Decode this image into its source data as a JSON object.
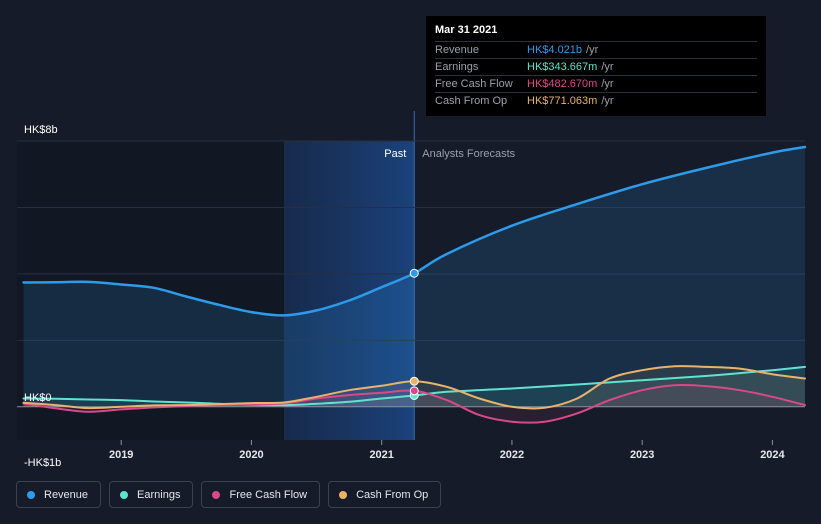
{
  "colors": {
    "revenue": "#2d9bea",
    "earnings": "#5fe3d0",
    "fcf": "#d9498a",
    "cfo": "#eab26a",
    "text": "#e6e8ec",
    "muted": "#9aa0ab"
  },
  "tooltip": {
    "date": "Mar 31 2021",
    "rows": [
      {
        "label": "Revenue",
        "value": "HK$4.021b",
        "unit": "/yr",
        "color": "#2d9bea"
      },
      {
        "label": "Earnings",
        "value": "HK$343.667m",
        "unit": "/yr",
        "color": "#5fe3d0"
      },
      {
        "label": "Free Cash Flow",
        "value": "HK$482.670m",
        "unit": "/yr",
        "color": "#d9498a"
      },
      {
        "label": "Cash From Op",
        "value": "HK$771.063m",
        "unit": "/yr",
        "color": "#eab26a"
      }
    ]
  },
  "chart_data": {
    "type": "line",
    "y_unit": "HK$ billions",
    "ylim": [
      -1,
      8
    ],
    "y_tick_labels": [
      {
        "value": 8,
        "label": "HK$8b"
      },
      {
        "value": 0,
        "label": "HK$0"
      },
      {
        "value": -1,
        "label": "-HK$1b"
      }
    ],
    "gridlines": [
      8,
      6,
      4,
      2,
      0
    ],
    "xlim": [
      2018.2,
      2024.25
    ],
    "x_ticks": [
      2019,
      2020,
      2021,
      2022,
      2023,
      2024
    ],
    "past_label": "Past",
    "forecast_label": "Analysts Forecasts",
    "past_end": 2021.25,
    "highlight_start": 2020.25,
    "series": [
      {
        "name": "Revenue",
        "key": "revenue",
        "points": [
          [
            2018.25,
            3.74
          ],
          [
            2018.5,
            3.75
          ],
          [
            2018.75,
            3.76
          ],
          [
            2019.0,
            3.68
          ],
          [
            2019.25,
            3.58
          ],
          [
            2019.5,
            3.32
          ],
          [
            2019.75,
            3.07
          ],
          [
            2020.0,
            2.85
          ],
          [
            2020.25,
            2.75
          ],
          [
            2020.5,
            2.9
          ],
          [
            2020.75,
            3.2
          ],
          [
            2021.0,
            3.6
          ],
          [
            2021.25,
            4.02
          ],
          [
            2021.5,
            4.6
          ],
          [
            2022.0,
            5.45
          ],
          [
            2022.5,
            6.1
          ],
          [
            2023.0,
            6.7
          ],
          [
            2023.5,
            7.2
          ],
          [
            2024.0,
            7.65
          ],
          [
            2024.25,
            7.82
          ]
        ]
      },
      {
        "name": "Earnings",
        "key": "earnings",
        "points": [
          [
            2018.25,
            0.25
          ],
          [
            2018.5,
            0.24
          ],
          [
            2018.75,
            0.22
          ],
          [
            2019.0,
            0.2
          ],
          [
            2019.25,
            0.16
          ],
          [
            2019.5,
            0.13
          ],
          [
            2019.75,
            0.09
          ],
          [
            2020.0,
            0.06
          ],
          [
            2020.25,
            0.05
          ],
          [
            2020.5,
            0.09
          ],
          [
            2020.75,
            0.15
          ],
          [
            2021.0,
            0.25
          ],
          [
            2021.25,
            0.34
          ],
          [
            2021.5,
            0.45
          ],
          [
            2022.0,
            0.55
          ],
          [
            2022.5,
            0.67
          ],
          [
            2023.0,
            0.8
          ],
          [
            2023.5,
            0.93
          ],
          [
            2024.0,
            1.1
          ],
          [
            2024.25,
            1.2
          ]
        ]
      },
      {
        "name": "Free Cash Flow",
        "key": "fcf",
        "points": [
          [
            2018.25,
            0.1
          ],
          [
            2018.5,
            -0.05
          ],
          [
            2018.75,
            -0.15
          ],
          [
            2019.0,
            -0.08
          ],
          [
            2019.25,
            -0.02
          ],
          [
            2019.5,
            0.02
          ],
          [
            2019.75,
            0.05
          ],
          [
            2020.0,
            0.07
          ],
          [
            2020.25,
            0.1
          ],
          [
            2020.5,
            0.25
          ],
          [
            2020.75,
            0.35
          ],
          [
            2021.0,
            0.42
          ],
          [
            2021.25,
            0.48
          ],
          [
            2021.5,
            0.2
          ],
          [
            2021.75,
            -0.25
          ],
          [
            2022.0,
            -0.45
          ],
          [
            2022.25,
            -0.45
          ],
          [
            2022.5,
            -0.2
          ],
          [
            2022.75,
            0.2
          ],
          [
            2023.0,
            0.5
          ],
          [
            2023.25,
            0.65
          ],
          [
            2023.5,
            0.62
          ],
          [
            2023.75,
            0.5
          ],
          [
            2024.0,
            0.3
          ],
          [
            2024.25,
            0.05
          ]
        ]
      },
      {
        "name": "Cash From Op",
        "key": "cfo",
        "points": [
          [
            2018.25,
            0.12
          ],
          [
            2018.5,
            0.05
          ],
          [
            2018.75,
            -0.04
          ],
          [
            2019.0,
            0.0
          ],
          [
            2019.25,
            0.04
          ],
          [
            2019.5,
            0.05
          ],
          [
            2019.75,
            0.08
          ],
          [
            2020.0,
            0.11
          ],
          [
            2020.25,
            0.13
          ],
          [
            2020.5,
            0.3
          ],
          [
            2020.75,
            0.5
          ],
          [
            2021.0,
            0.63
          ],
          [
            2021.25,
            0.77
          ],
          [
            2021.5,
            0.6
          ],
          [
            2021.75,
            0.25
          ],
          [
            2022.0,
            0.0
          ],
          [
            2022.25,
            -0.03
          ],
          [
            2022.5,
            0.25
          ],
          [
            2022.75,
            0.85
          ],
          [
            2023.0,
            1.1
          ],
          [
            2023.25,
            1.22
          ],
          [
            2023.5,
            1.2
          ],
          [
            2023.75,
            1.15
          ],
          [
            2024.0,
            0.98
          ],
          [
            2024.25,
            0.85
          ]
        ]
      }
    ]
  },
  "legend": [
    {
      "label": "Revenue",
      "key": "revenue"
    },
    {
      "label": "Earnings",
      "key": "earnings"
    },
    {
      "label": "Free Cash Flow",
      "key": "fcf"
    },
    {
      "label": "Cash From Op",
      "key": "cfo"
    }
  ]
}
